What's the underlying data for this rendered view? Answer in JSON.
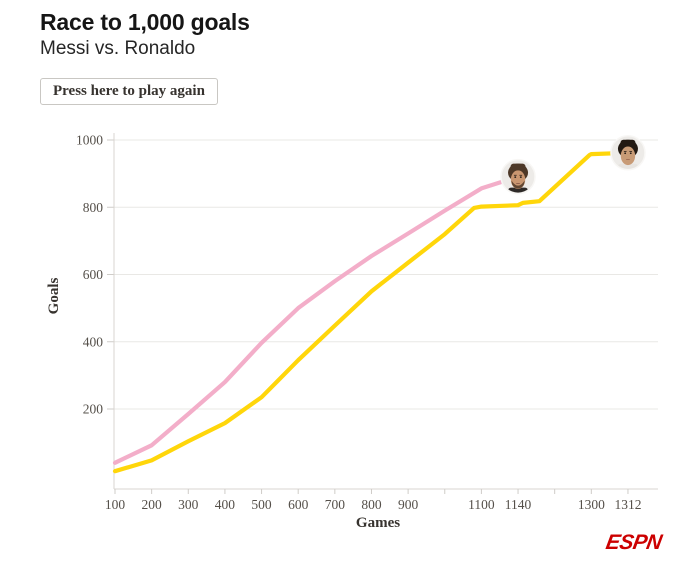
{
  "header": {
    "title": "Race to 1,000 goals",
    "subtitle": "Messi vs. Ronaldo"
  },
  "controls": {
    "play_again_label": "Press here to play again"
  },
  "branding": {
    "logo_text": "ESPN",
    "logo_color": "#cc0000"
  },
  "chart_data": {
    "type": "line",
    "title": "Race to 1,000 goals",
    "xlabel": "Games",
    "ylabel": "Goals",
    "grid": "horizontal",
    "ylim": [
      0,
      1040
    ],
    "y_ticks": [
      200,
      400,
      600,
      800,
      1000
    ],
    "x_tick_values": [
      100,
      200,
      300,
      400,
      500,
      600,
      700,
      800,
      900,
      1000,
      1100,
      1140,
      1200,
      1300,
      1312
    ],
    "x_tick_labels": [
      "100",
      "200",
      "300",
      "400",
      "500",
      "600",
      "700",
      "800",
      "900",
      "",
      "1100",
      "1140",
      "",
      "1300",
      "1312"
    ],
    "series": [
      {
        "name": "Messi",
        "color": "#f3aec9",
        "hair_color": "#4d3827",
        "skin_color": "#c99670",
        "has_beard": true,
        "final": {
          "games": 1140,
          "goals": 891
        },
        "points": [
          [
            100,
            40
          ],
          [
            200,
            92
          ],
          [
            300,
            185
          ],
          [
            400,
            280
          ],
          [
            500,
            397
          ],
          [
            600,
            500
          ],
          [
            700,
            580
          ],
          [
            800,
            655
          ],
          [
            900,
            722
          ],
          [
            1000,
            790
          ],
          [
            1100,
            856
          ],
          [
            1140,
            891
          ]
        ]
      },
      {
        "name": "Ronaldo",
        "color": "#ffd60a",
        "hair_color": "#221a13",
        "skin_color": "#c89b76",
        "has_beard": false,
        "final": {
          "games": 1312,
          "goals": 962
        },
        "points": [
          [
            100,
            15
          ],
          [
            200,
            47
          ],
          [
            300,
            104
          ],
          [
            400,
            158
          ],
          [
            500,
            235
          ],
          [
            600,
            345
          ],
          [
            700,
            448
          ],
          [
            800,
            550
          ],
          [
            900,
            635
          ],
          [
            1000,
            720
          ],
          [
            1080,
            798
          ],
          [
            1100,
            802
          ],
          [
            1140,
            806
          ],
          [
            1148,
            813
          ],
          [
            1175,
            818
          ],
          [
            1295,
            955
          ],
          [
            1300,
            958
          ],
          [
            1312,
            962
          ]
        ]
      }
    ]
  }
}
